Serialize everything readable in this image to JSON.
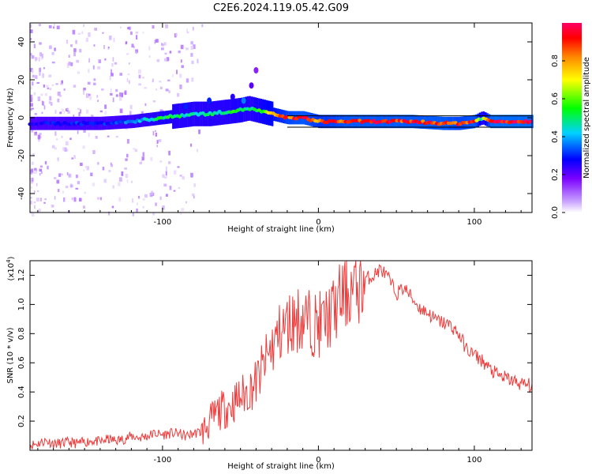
{
  "title": "C2E6.2024.119.05.42.G09",
  "chart_data": [
    {
      "type": "heatmap",
      "xlabel": "Height of straight line (km)",
      "ylabel": "Frequency (Hz)",
      "xlim": [
        -185,
        137
      ],
      "ylim": [
        -50,
        50
      ],
      "x_ticks": [
        -100,
        0,
        100
      ],
      "y_ticks": [
        -40,
        -20,
        0,
        20,
        40
      ],
      "colorbar": {
        "label": "Normalized spectral amplitude",
        "range": [
          0,
          1
        ],
        "ticks": [
          "0.0",
          "0.2",
          "0.4",
          "0.6",
          "0.8"
        ]
      },
      "ridge": {
        "x": [
          -185,
          -160,
          -140,
          -120,
          -100,
          -90,
          -80,
          -70,
          -60,
          -50,
          -45,
          -40,
          -30,
          -20,
          -10,
          0,
          10,
          20,
          40,
          60,
          80,
          90,
          100,
          105,
          110,
          137
        ],
        "frequency": [
          -3,
          -3,
          -3,
          -2,
          0,
          1,
          2,
          2,
          3,
          4,
          5,
          4,
          2,
          0,
          0,
          -2,
          -2,
          -2,
          -2,
          -2,
          -3,
          -3,
          -2,
          0,
          -2,
          -2
        ],
        "amplitude": [
          0.3,
          0.35,
          0.35,
          0.4,
          0.55,
          0.5,
          0.5,
          0.5,
          0.5,
          0.55,
          0.5,
          0.55,
          0.7,
          0.85,
          0.9,
          0.8,
          0.85,
          0.9,
          0.9,
          0.9,
          0.9,
          0.85,
          0.9,
          0.5,
          0.95,
          0.95
        ]
      }
    },
    {
      "type": "line",
      "xlabel": "Height of straight line (km)",
      "ylabel": "SNR (10 * v/v)",
      "y_multiplier": "(x10",
      "y_multiplier_exp": "4",
      "y_multiplier_close": ")",
      "xlim": [
        -185,
        137
      ],
      "ylim": [
        0,
        1.3
      ],
      "x_ticks": [
        -100,
        0,
        100
      ],
      "y_ticks": [
        "0.2",
        "0.4",
        "0.6",
        "0.8",
        "1.0",
        "1.2"
      ],
      "y_tick_values": [
        0.2,
        0.4,
        0.6,
        0.8,
        1.0,
        1.2
      ],
      "color": "#ee3b3b",
      "series": [
        {
          "x": [
            -185,
            -180,
            -175,
            -170,
            -165,
            -160,
            -155,
            -150,
            -145,
            -140,
            -135,
            -130,
            -125,
            -120,
            -115,
            -110,
            -105,
            -100,
            -95,
            -90,
            -85,
            -80,
            -75,
            -70,
            -65,
            -60,
            -55,
            -50,
            -45,
            -40,
            -35,
            -30,
            -25,
            -20,
            -15,
            -10,
            -5,
            0,
            5,
            10,
            15,
            20,
            25,
            30,
            35,
            40,
            45,
            50,
            55,
            60,
            65,
            70,
            75,
            80,
            85,
            90,
            95,
            100,
            105,
            110,
            115,
            120,
            125,
            130,
            137
          ],
          "y": [
            0.04,
            0.05,
            0.07,
            0.05,
            0.05,
            0.06,
            0.05,
            0.06,
            0.07,
            0.06,
            0.08,
            0.07,
            0.08,
            0.1,
            0.09,
            0.1,
            0.12,
            0.11,
            0.12,
            0.12,
            0.1,
            0.12,
            0.13,
            0.2,
            0.27,
            0.3,
            0.33,
            0.38,
            0.42,
            0.48,
            0.6,
            0.72,
            0.82,
            0.88,
            0.92,
            0.93,
            0.9,
            0.88,
            0.92,
            0.98,
            1.08,
            1.12,
            1.15,
            1.18,
            1.2,
            1.25,
            1.18,
            1.08,
            1.12,
            1.05,
            0.98,
            0.95,
            0.9,
            0.88,
            0.86,
            0.8,
            0.7,
            0.66,
            0.62,
            0.56,
            0.52,
            0.5,
            0.48,
            0.46,
            0.45
          ]
        }
      ]
    }
  ],
  "colors": {
    "line": "#ee3b3b",
    "ridge_line": "#000000",
    "colormap": [
      "#ffffff",
      "#c8a0ff",
      "#7a00ff",
      "#0000ff",
      "#00d2ff",
      "#00ff00",
      "#ffff00",
      "#ff8800",
      "#ff0000",
      "#ff0066"
    ]
  }
}
